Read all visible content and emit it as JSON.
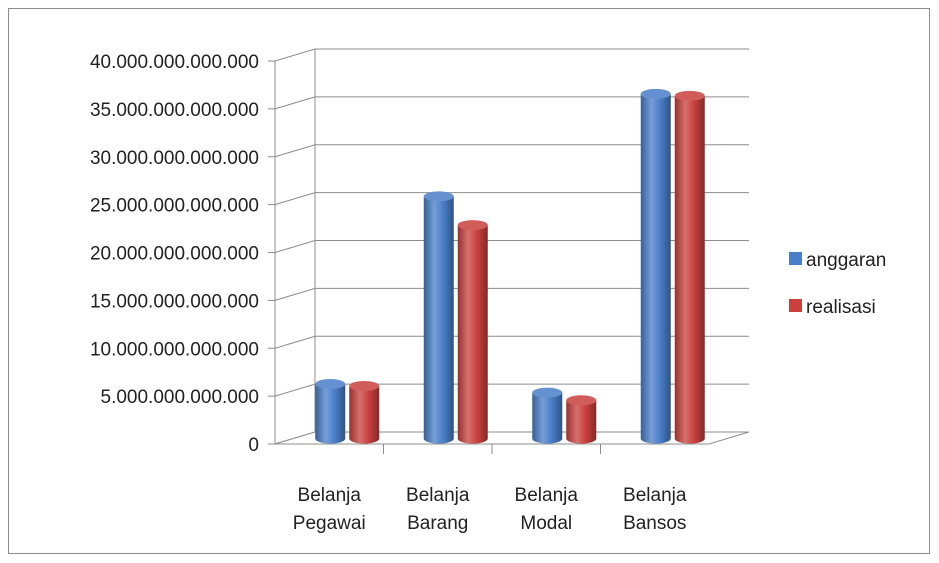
{
  "chart_data": {
    "type": "bar",
    "style": "3d-cylinder",
    "title": "",
    "xlabel": "",
    "ylabel": "",
    "categories": [
      [
        "Belanja",
        "Pegawai"
      ],
      [
        "Belanja",
        "Barang"
      ],
      [
        "Belanja",
        "Modal"
      ],
      [
        "Belanja",
        "Bansos"
      ]
    ],
    "series": [
      {
        "name": "anggaran",
        "color": "#4a7ec9",
        "values": [
          5700000000000,
          25300000000000,
          4800000000000,
          36000000000000
        ]
      },
      {
        "name": "realisasi",
        "color": "#c9403d",
        "values": [
          5500000000000,
          22300000000000,
          4000000000000,
          35800000000000
        ]
      }
    ],
    "ylim": [
      0,
      40000000000000
    ],
    "yticks": [
      {
        "value": 0,
        "label": "0"
      },
      {
        "value": 5000000000000,
        "label": "5.000.000.000.000"
      },
      {
        "value": 10000000000000,
        "label": "10.000.000.000.000"
      },
      {
        "value": 15000000000000,
        "label": "15.000.000.000.000"
      },
      {
        "value": 20000000000000,
        "label": "20.000.000.000.000"
      },
      {
        "value": 25000000000000,
        "label": "25.000.000.000.000"
      },
      {
        "value": 30000000000000,
        "label": "30.000.000.000.000"
      },
      {
        "value": 35000000000000,
        "label": "35.000.000.000.000"
      },
      {
        "value": 40000000000000,
        "label": "40.000.000.000.000"
      }
    ],
    "grid": true,
    "legend": "right"
  }
}
